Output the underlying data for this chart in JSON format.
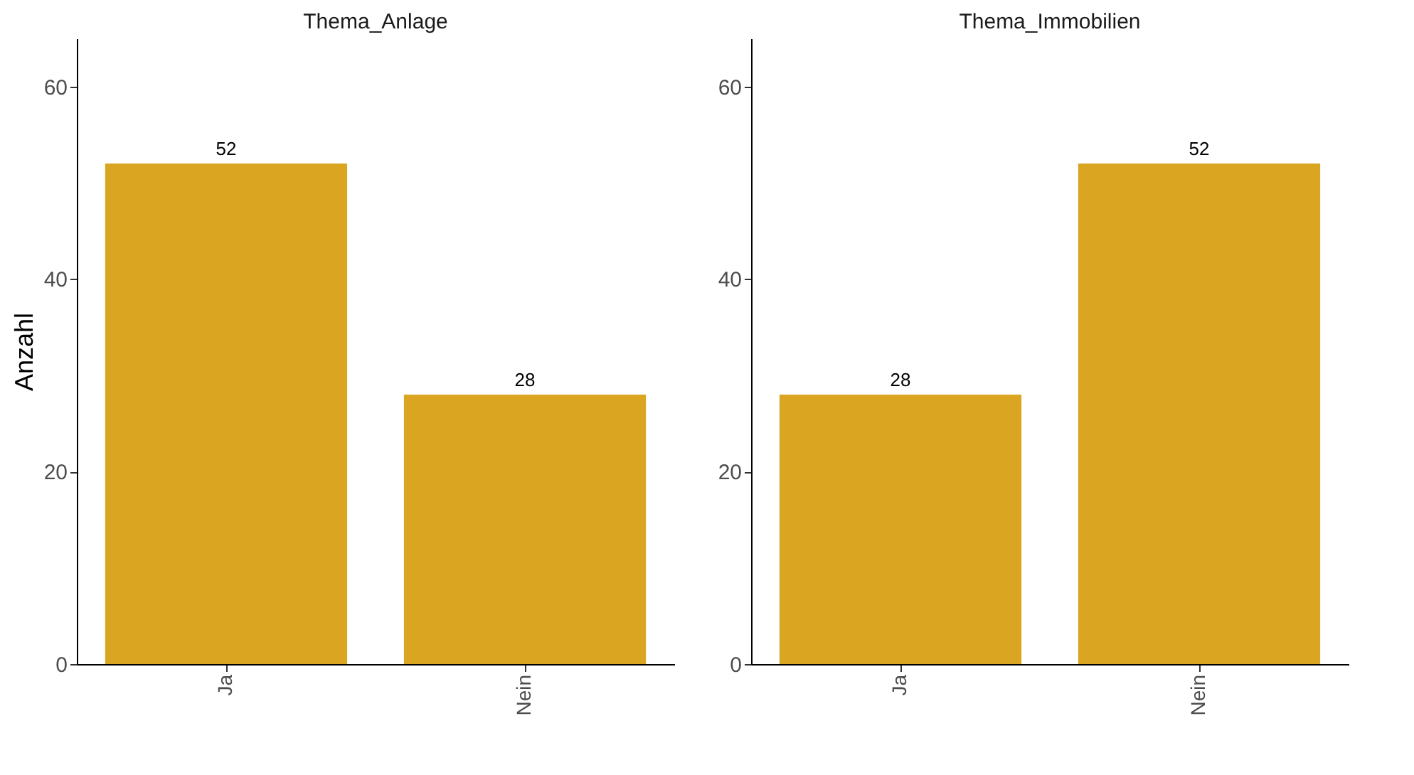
{
  "chart_data": [
    {
      "type": "bar",
      "title": "Thema_Anlage",
      "ylabel": "Anzahl",
      "categories": [
        "Ja",
        "Nein"
      ],
      "values": [
        52,
        28
      ],
      "color": "#daa520",
      "ylim": [
        0,
        65
      ],
      "yticks": [
        0,
        20,
        40,
        60
      ],
      "data_labels": true,
      "grid": false
    },
    {
      "type": "bar",
      "title": "Thema_Immobilien",
      "categories": [
        "Ja",
        "Nein"
      ],
      "values": [
        28,
        52
      ],
      "color": "#daa520",
      "ylim": [
        0,
        65
      ],
      "yticks": [
        0,
        20,
        40,
        60
      ],
      "data_labels": true,
      "grid": false
    }
  ]
}
